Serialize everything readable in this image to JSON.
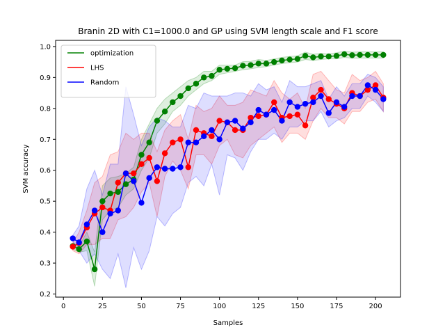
{
  "chart_data": {
    "type": "line",
    "title": "Branin 2D with C1=1000.0 and GP using SVM length scale and F1 score",
    "xlabel": "Samples",
    "ylabel": "SVM accuracy",
    "xlim": [
      -5,
      216
    ],
    "ylim": [
      0.19,
      1.02
    ],
    "xticks": [
      0,
      25,
      50,
      75,
      100,
      125,
      150,
      175,
      200
    ],
    "yticks": [
      0.2,
      0.3,
      0.4,
      0.5,
      0.6,
      0.7,
      0.8,
      0.9,
      1.0
    ],
    "grid": false,
    "legend_position": "top-left",
    "x": [
      6,
      10,
      15,
      20,
      25,
      30,
      35,
      40,
      45,
      50,
      55,
      60,
      65,
      70,
      75,
      80,
      85,
      90,
      95,
      100,
      105,
      110,
      115,
      120,
      125,
      130,
      135,
      140,
      145,
      150,
      155,
      160,
      165,
      170,
      175,
      180,
      185,
      190,
      195,
      200,
      205
    ],
    "series": [
      {
        "name": "optimization",
        "color": "#008000",
        "values": [
          0.355,
          0.345,
          0.37,
          0.28,
          0.5,
          0.525,
          0.53,
          0.555,
          0.57,
          0.65,
          0.69,
          0.76,
          0.79,
          0.82,
          0.84,
          0.865,
          0.88,
          0.9,
          0.905,
          0.925,
          0.928,
          0.93,
          0.938,
          0.94,
          0.945,
          0.945,
          0.95,
          0.955,
          0.958,
          0.96,
          0.97,
          0.965,
          0.968,
          0.968,
          0.97,
          0.975,
          0.972,
          0.973,
          0.973,
          0.973,
          0.973
        ],
        "lower": [
          0.345,
          0.335,
          0.34,
          0.225,
          0.44,
          0.47,
          0.48,
          0.52,
          0.54,
          0.6,
          0.64,
          0.72,
          0.75,
          0.79,
          0.81,
          0.84,
          0.86,
          0.88,
          0.89,
          0.91,
          0.915,
          0.92,
          0.925,
          0.928,
          0.932,
          0.935,
          0.94,
          0.945,
          0.948,
          0.95,
          0.958,
          0.955,
          0.958,
          0.96,
          0.96,
          0.965,
          0.962,
          0.963,
          0.963,
          0.963,
          0.963
        ],
        "upper": [
          0.365,
          0.355,
          0.4,
          0.335,
          0.55,
          0.575,
          0.58,
          0.59,
          0.61,
          0.7,
          0.75,
          0.8,
          0.83,
          0.85,
          0.87,
          0.89,
          0.9,
          0.92,
          0.92,
          0.94,
          0.94,
          0.94,
          0.951,
          0.952,
          0.958,
          0.955,
          0.96,
          0.965,
          0.968,
          0.97,
          0.982,
          0.975,
          0.978,
          0.976,
          0.98,
          0.985,
          0.982,
          0.983,
          0.983,
          0.983,
          0.983
        ]
      },
      {
        "name": "LHS",
        "color": "#ff0000",
        "values": [
          0.353,
          0.365,
          0.415,
          0.46,
          0.48,
          0.47,
          0.56,
          0.59,
          0.59,
          0.62,
          0.64,
          0.565,
          0.655,
          0.69,
          0.7,
          0.61,
          0.73,
          0.72,
          0.71,
          0.76,
          0.755,
          0.73,
          0.73,
          0.77,
          0.775,
          0.78,
          0.82,
          0.77,
          0.775,
          0.78,
          0.745,
          0.835,
          0.86,
          0.83,
          0.815,
          0.8,
          0.85,
          0.84,
          0.86,
          0.875,
          0.835
        ],
        "lower": [
          0.34,
          0.33,
          0.36,
          0.36,
          0.38,
          0.38,
          0.44,
          0.45,
          0.48,
          0.53,
          0.56,
          0.45,
          0.58,
          0.63,
          0.6,
          0.54,
          0.65,
          0.65,
          0.62,
          0.68,
          0.7,
          0.65,
          0.64,
          0.68,
          0.7,
          0.72,
          0.74,
          0.69,
          0.72,
          0.72,
          0.7,
          0.76,
          0.8,
          0.77,
          0.77,
          0.75,
          0.79,
          0.79,
          0.82,
          0.83,
          0.79
        ],
        "upper": [
          0.365,
          0.4,
          0.47,
          0.56,
          0.58,
          0.65,
          0.66,
          0.72,
          0.7,
          0.72,
          0.72,
          0.66,
          0.73,
          0.76,
          0.78,
          0.7,
          0.81,
          0.79,
          0.8,
          0.84,
          0.81,
          0.81,
          0.82,
          0.86,
          0.85,
          0.84,
          0.89,
          0.85,
          0.83,
          0.85,
          0.8,
          0.91,
          0.92,
          0.89,
          0.86,
          0.85,
          0.91,
          0.89,
          0.9,
          0.92,
          0.88
        ]
      },
      {
        "name": "Random",
        "color": "#0000ff",
        "values": [
          0.38,
          0.367,
          0.425,
          0.47,
          0.4,
          0.46,
          0.47,
          0.59,
          0.565,
          0.495,
          0.575,
          0.61,
          0.605,
          0.605,
          0.61,
          0.69,
          0.69,
          0.71,
          0.73,
          0.7,
          0.755,
          0.76,
          0.735,
          0.755,
          0.795,
          0.78,
          0.795,
          0.76,
          0.82,
          0.805,
          0.815,
          0.82,
          0.84,
          0.785,
          0.82,
          0.805,
          0.84,
          0.84,
          0.875,
          0.86,
          0.83
        ],
        "lower": [
          0.37,
          0.34,
          0.3,
          0.33,
          0.28,
          0.25,
          0.33,
          0.22,
          0.35,
          0.28,
          0.34,
          0.45,
          0.42,
          0.46,
          0.48,
          0.56,
          0.58,
          0.55,
          0.62,
          0.52,
          0.65,
          0.64,
          0.6,
          0.66,
          0.7,
          0.7,
          0.72,
          0.7,
          0.74,
          0.74,
          0.76,
          0.76,
          0.79,
          0.74,
          0.76,
          0.77,
          0.8,
          0.8,
          0.84,
          0.82,
          0.79
        ],
        "upper": [
          0.39,
          0.42,
          0.54,
          0.6,
          0.52,
          0.62,
          0.62,
          0.87,
          0.78,
          0.68,
          0.74,
          0.77,
          0.76,
          0.74,
          0.74,
          0.81,
          0.8,
          0.85,
          0.84,
          0.84,
          0.84,
          0.85,
          0.85,
          0.84,
          0.88,
          0.86,
          0.87,
          0.82,
          0.89,
          0.87,
          0.87,
          0.88,
          0.89,
          0.83,
          0.87,
          0.84,
          0.88,
          0.88,
          0.91,
          0.9,
          0.87
        ]
      }
    ]
  }
}
